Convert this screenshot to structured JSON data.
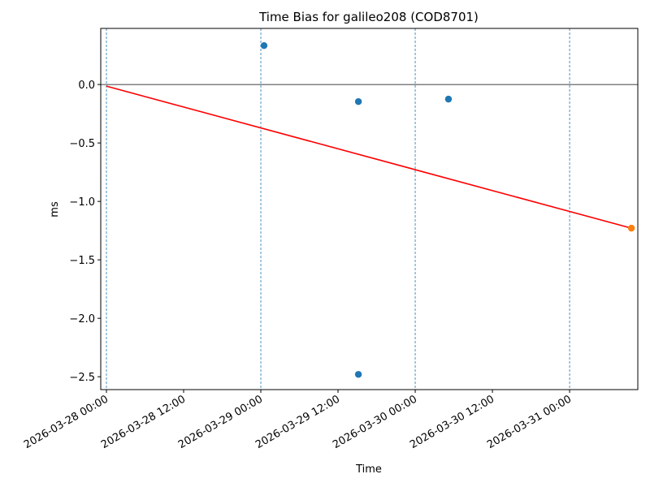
{
  "chart_data": {
    "type": "scatter",
    "title": "Time Bias for galileo208 (COD8701)",
    "x_label": "Time",
    "y_label": "ms",
    "xlim": [
      "2026-03-27 23:07",
      "2026-03-31 10:36"
    ],
    "xticks": [
      "2026-03-28 00:00",
      "2026-03-28 12:00",
      "2026-03-29 00:00",
      "2026-03-29 12:00",
      "2026-03-30 00:00",
      "2026-03-30 12:00",
      "2026-03-31 00:00"
    ],
    "ylim": [
      -2.61,
      0.48
    ],
    "yticks": [
      {
        "value": 0,
        "label": "0.0"
      },
      {
        "value": -0.5,
        "label": "−0.5"
      },
      {
        "value": -1,
        "label": "−1.0"
      },
      {
        "value": -1.5,
        "label": "−1.5"
      },
      {
        "value": -2,
        "label": "−2.0"
      },
      {
        "value": -2.5,
        "label": "−2.5"
      }
    ],
    "vlines": [
      "2026-03-28 00:00",
      "2026-03-29 00:00",
      "2026-03-30 00:00",
      "2026-03-31 00:00"
    ],
    "vline_color": "#1f77b4",
    "hline": 0,
    "series": [
      {
        "style": "points",
        "color": "#1f77b4",
        "x": [
          "2026-03-29 00:30",
          "2026-03-29 15:10",
          "2026-03-29 15:10",
          "2026-03-30 05:10"
        ],
        "values": [
          0.333,
          -0.146,
          -2.48,
          -0.125
        ]
      },
      {
        "style": "line",
        "color": "#ff0000",
        "x": [
          "2026-03-28 00:00",
          "2026-03-31 09:36"
        ],
        "values": [
          -0.014,
          -1.229
        ]
      },
      {
        "style": "points",
        "color": "#ff7f0e",
        "x": [
          "2026-03-31 09:36"
        ],
        "values": [
          -1.229
        ]
      }
    ]
  }
}
